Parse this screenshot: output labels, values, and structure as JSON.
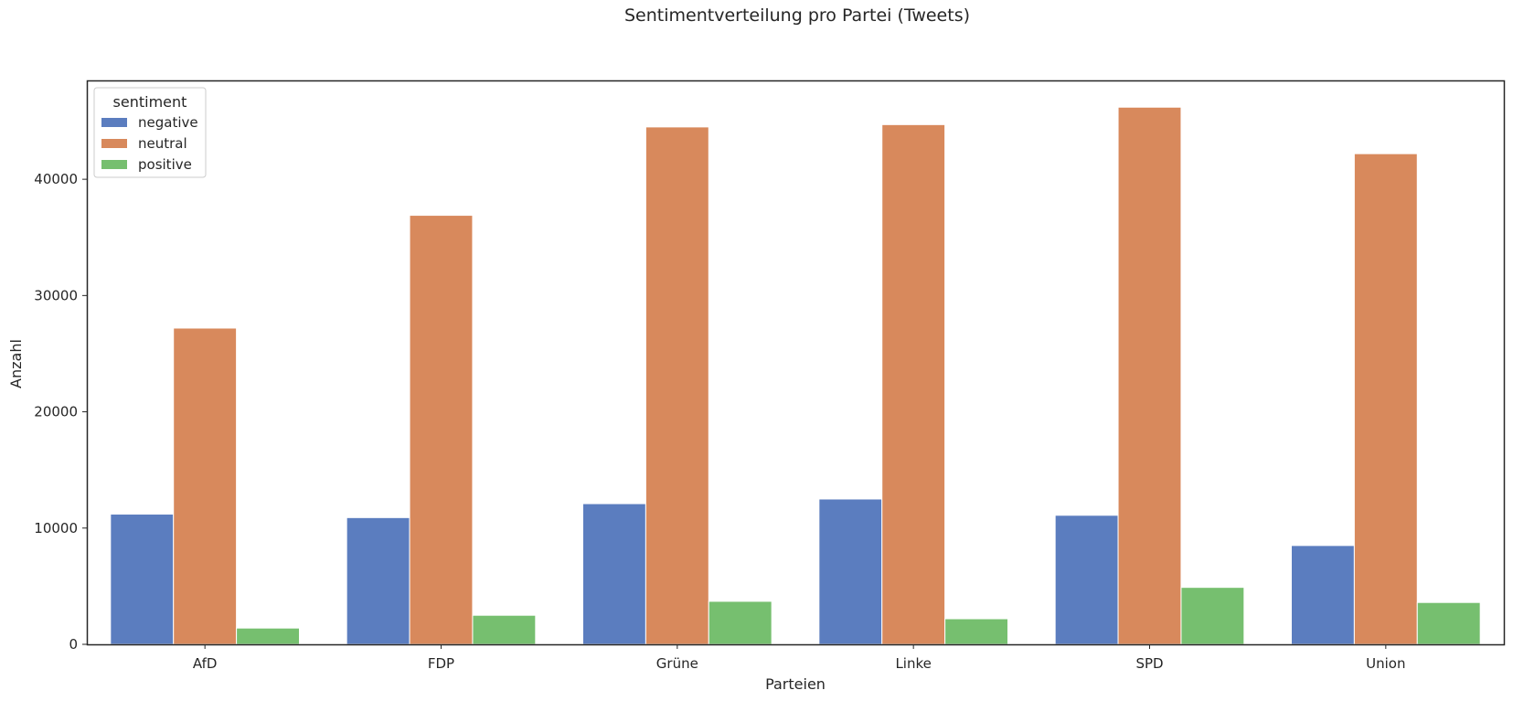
{
  "chart_data": {
    "type": "bar",
    "title": "Sentimentverteilung pro Partei (Tweets)",
    "xlabel": "Parteien",
    "ylabel": "Anzahl",
    "categories": [
      "AfD",
      "FDP",
      "Grüne",
      "Linke",
      "SPD",
      "Union"
    ],
    "series": [
      {
        "name": "negative",
        "color": "#5b7dbf",
        "values": [
          11200,
          10900,
          12100,
          12500,
          11100,
          8500
        ]
      },
      {
        "name": "neutral",
        "color": "#d8895c",
        "values": [
          27200,
          36900,
          44500,
          44700,
          46200,
          42200
        ]
      },
      {
        "name": "positive",
        "color": "#76bf6f",
        "values": [
          1400,
          2500,
          3700,
          2200,
          4900,
          3600
        ]
      }
    ],
    "ylim": [
      0,
      48500
    ],
    "yticks": [
      0,
      10000,
      20000,
      30000,
      40000
    ],
    "ytick_labels": [
      "0",
      "10000",
      "20000",
      "30000",
      "40000"
    ],
    "legend": {
      "title": "sentiment",
      "position": "top-left"
    },
    "grid": false
  }
}
